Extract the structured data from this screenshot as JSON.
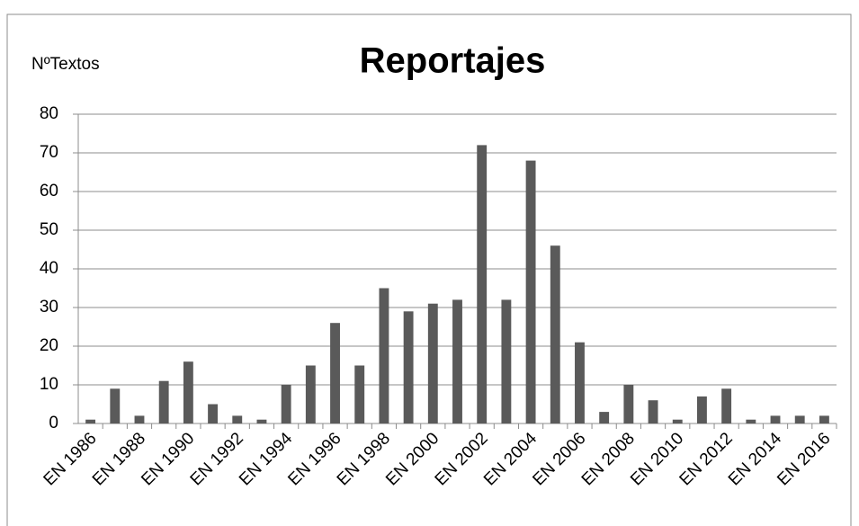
{
  "chart_data": {
    "type": "bar",
    "title": "Reportajes",
    "y_label": "NºTextos",
    "categories": [
      "EN 1986",
      null,
      "EN 1988",
      null,
      "EN 1990",
      null,
      "EN 1992",
      null,
      "EN 1994",
      null,
      "EN 1996",
      null,
      "EN 1998",
      null,
      "EN 2000",
      null,
      "EN 2002",
      null,
      "EN 2004",
      null,
      "EN 2006",
      null,
      "EN 2008",
      null,
      "EN 2010",
      null,
      "EN 2012",
      null,
      "EN 2014",
      null,
      "EN 2016"
    ],
    "values": [
      1,
      9,
      2,
      11,
      16,
      5,
      2,
      1,
      10,
      15,
      26,
      15,
      35,
      29,
      31,
      32,
      72,
      32,
      68,
      46,
      21,
      3,
      10,
      6,
      1,
      7,
      9,
      1,
      2,
      2,
      2
    ],
    "color": "#5a5a5a",
    "ylim": [
      0,
      80
    ],
    "yticks": [
      0,
      10,
      20,
      30,
      40,
      50,
      60,
      70,
      80
    ],
    "grid": true
  }
}
